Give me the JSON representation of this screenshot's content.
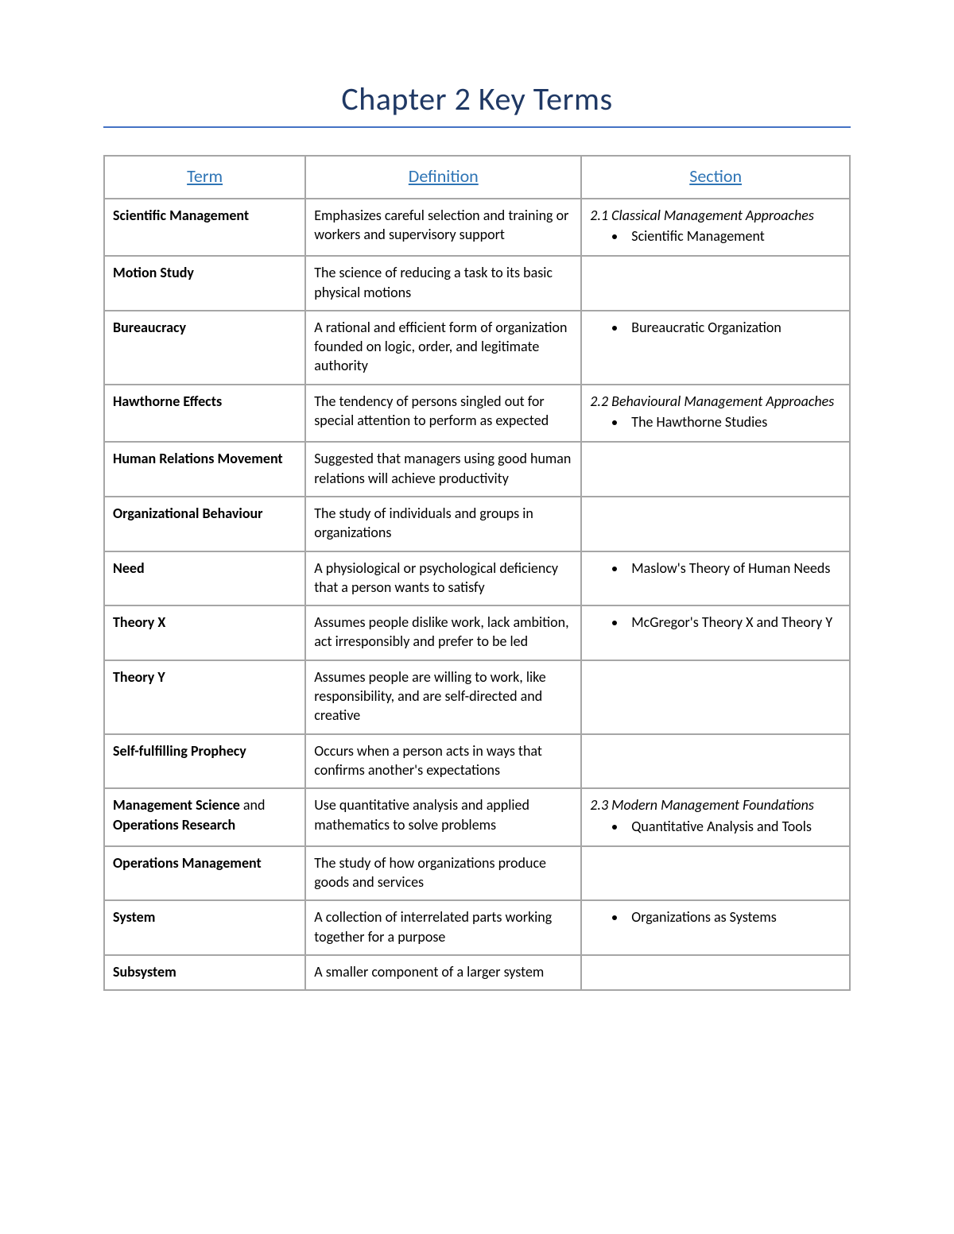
{
  "title": "Chapter 2 Key Terms",
  "title_color": "#1f3864",
  "title_fontsize": 40,
  "rule_color": "#4472c4",
  "table_border_color": "#a6a6a6",
  "header_color": "#2e74b5",
  "columns": [
    "Term",
    "Definition",
    "Section"
  ],
  "rows": [
    {
      "term_parts": [
        {
          "text": "Scientific Management",
          "bold": true
        }
      ],
      "definition": "Emphasizes careful selection and training or workers and supervisory support",
      "section_header": "2.1 Classical Management Approaches",
      "section_bullets": [
        "Scientific Management"
      ]
    },
    {
      "term_parts": [
        {
          "text": "Motion Study",
          "bold": true
        }
      ],
      "definition": "The science of reducing a task to its basic physical motions",
      "section_header": "",
      "section_bullets": []
    },
    {
      "term_parts": [
        {
          "text": "Bureaucracy",
          "bold": true
        }
      ],
      "definition": "A rational and efficient form of organization founded on logic, order, and legitimate authority",
      "section_header": "",
      "section_bullets": [
        "Bureaucratic Organization"
      ]
    },
    {
      "term_parts": [
        {
          "text": "Hawthorne Effects",
          "bold": true
        }
      ],
      "definition": "The tendency of persons singled out for special attention to perform as expected",
      "section_header": "2.2 Behavioural Management Approaches",
      "section_bullets": [
        "The Hawthorne Studies"
      ]
    },
    {
      "term_parts": [
        {
          "text": "Human Relations Movement",
          "bold": true
        }
      ],
      "definition": "Suggested that managers using good human relations will achieve productivity",
      "section_header": "",
      "section_bullets": []
    },
    {
      "term_parts": [
        {
          "text": "Organizational Behaviour",
          "bold": true
        }
      ],
      "definition": "The study of individuals and groups in organizations",
      "section_header": "",
      "section_bullets": []
    },
    {
      "term_parts": [
        {
          "text": "Need",
          "bold": true
        }
      ],
      "definition": "A physiological or psychological deficiency that a person wants to satisfy",
      "section_header": "",
      "section_bullets": [
        "Maslow's Theory of Human Needs"
      ]
    },
    {
      "term_parts": [
        {
          "text": "Theory X",
          "bold": true
        }
      ],
      "definition": "Assumes people dislike work, lack ambition, act irresponsibly and prefer to be led",
      "section_header": "",
      "section_bullets": [
        "McGregor's Theory X and Theory Y"
      ]
    },
    {
      "term_parts": [
        {
          "text": "Theory Y",
          "bold": true
        }
      ],
      "definition": "Assumes people are willing to work, like responsibility, and are self-directed and creative",
      "section_header": "",
      "section_bullets": []
    },
    {
      "term_parts": [
        {
          "text": "Self-fulfilling Prophecy",
          "bold": true
        }
      ],
      "definition": "Occurs when a person acts in ways that confirms another's expectations",
      "section_header": "",
      "section_bullets": []
    },
    {
      "term_parts": [
        {
          "text": "Management Science",
          "bold": true
        },
        {
          "text": " and ",
          "bold": false
        },
        {
          "text": "Operations Research",
          "bold": true
        }
      ],
      "definition": "Use quantitative analysis and applied mathematics to solve problems",
      "section_header": "2.3 Modern Management Foundations",
      "section_bullets": [
        "Quantitative Analysis and Tools"
      ]
    },
    {
      "term_parts": [
        {
          "text": "Operations Management",
          "bold": true
        }
      ],
      "definition": "The study of how organizations produce goods and services",
      "section_header": "",
      "section_bullets": []
    },
    {
      "term_parts": [
        {
          "text": "System",
          "bold": true
        }
      ],
      "definition": "A collection of interrelated parts working together for a purpose",
      "section_header": "",
      "section_bullets": [
        "Organizations as Systems"
      ]
    },
    {
      "term_parts": [
        {
          "text": "Subsystem",
          "bold": true
        }
      ],
      "definition": "A smaller component of a larger system",
      "section_header": "",
      "section_bullets": []
    }
  ]
}
